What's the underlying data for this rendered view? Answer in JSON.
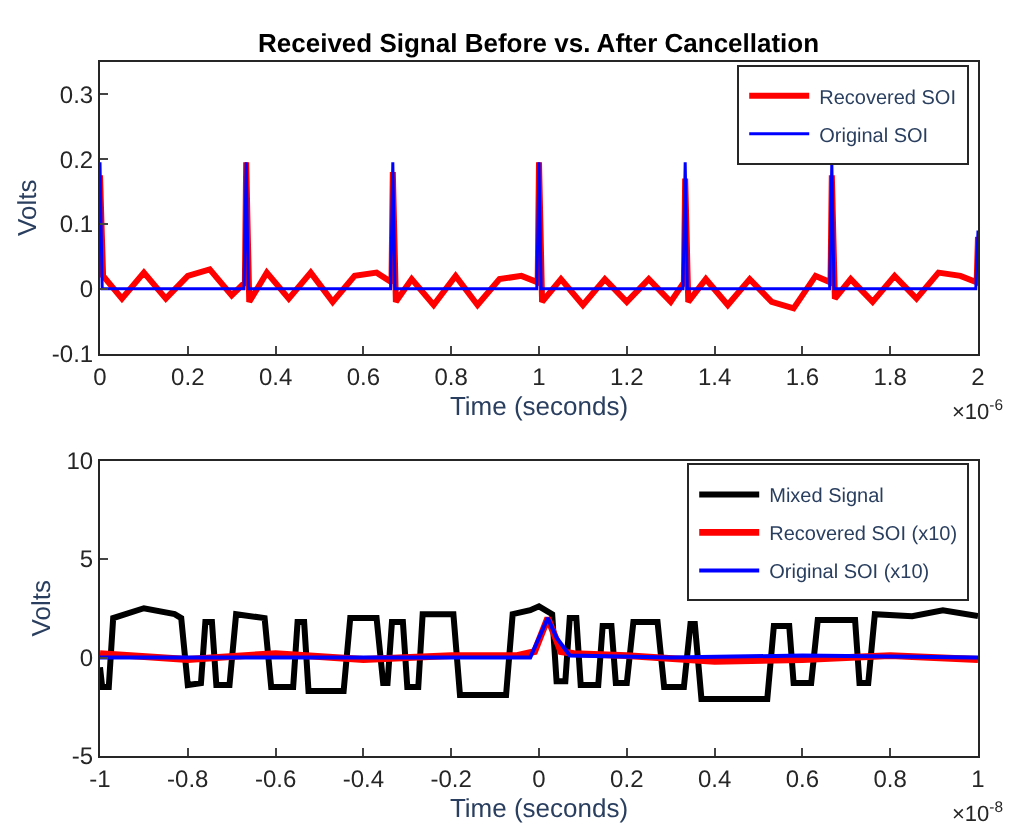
{
  "chart_data": [
    {
      "type": "line",
      "title": "Received Signal Before vs. After Cancellation",
      "xlabel": "Time (seconds)",
      "ylabel": "Volts",
      "xlim": [
        0,
        2
      ],
      "xticks": [
        0,
        0.2,
        0.4,
        0.6,
        0.8,
        1,
        1.2,
        1.4,
        1.6,
        1.8,
        2
      ],
      "ylim": [
        -0.1,
        0.35
      ],
      "yticks": [
        -0.1,
        0,
        0.1,
        0.2,
        0.3
      ],
      "grid": false,
      "legend": "top right",
      "annotations": [
        "×10$^{-6}$"
      ],
      "series": [
        {
          "name": "Recovered SOI",
          "color": "#ff0000",
          "x": [
            0,
            0.007,
            0.05,
            0.1,
            0.15,
            0.2,
            0.25,
            0.3,
            0.33,
            0.333,
            0.34,
            0.38,
            0.43,
            0.48,
            0.53,
            0.58,
            0.63,
            0.664,
            0.667,
            0.674,
            0.71,
            0.76,
            0.81,
            0.86,
            0.91,
            0.96,
            0.997,
            1.0,
            1.007,
            1.05,
            1.1,
            1.15,
            1.2,
            1.25,
            1.3,
            1.33,
            1.333,
            1.34,
            1.38,
            1.43,
            1.48,
            1.53,
            1.58,
            1.63,
            1.664,
            1.667,
            1.674,
            1.71,
            1.76,
            1.81,
            1.86,
            1.91,
            1.96,
            1.997,
            2.0
          ],
          "values": [
            0.175,
            0.02,
            -0.015,
            0.025,
            -0.015,
            0.02,
            0.03,
            -0.01,
            0.01,
            0.195,
            -0.02,
            0.025,
            -0.015,
            0.025,
            -0.02,
            0.02,
            0.025,
            0.01,
            0.18,
            -0.02,
            0.015,
            -0.025,
            0.02,
            -0.025,
            0.015,
            0.02,
            0.01,
            0.195,
            -0.02,
            0.015,
            -0.025,
            0.015,
            -0.02,
            0.015,
            -0.02,
            0.01,
            0.17,
            -0.02,
            0.015,
            -0.025,
            0.015,
            -0.02,
            -0.03,
            0.02,
            0.01,
            0.175,
            -0.015,
            0.015,
            -0.02,
            0.02,
            -0.015,
            0.025,
            0.02,
            0.01,
            0.08
          ]
        },
        {
          "name": "Original SOI",
          "color": "#0000ff",
          "x": [
            0,
            0.005,
            0.328,
            0.333,
            0.338,
            0.662,
            0.667,
            0.672,
            0.995,
            1.0,
            1.005,
            1.328,
            1.333,
            1.338,
            1.662,
            1.667,
            1.672,
            1.995,
            2.0
          ],
          "values": [
            0.195,
            0,
            0,
            0.195,
            0,
            0,
            0.195,
            0,
            0,
            0.195,
            0,
            0,
            0.195,
            0,
            0,
            0.195,
            0,
            0,
            0.09
          ]
        }
      ]
    },
    {
      "type": "line",
      "xlabel": "Time (seconds)",
      "ylabel": "Volts",
      "xlim": [
        -1,
        1
      ],
      "xticks": [
        -1,
        -0.8,
        -0.6,
        -0.4,
        -0.2,
        0,
        0.2,
        0.4,
        0.6,
        0.8,
        1
      ],
      "ylim": [
        -5,
        10
      ],
      "yticks": [
        -5,
        0,
        5,
        10
      ],
      "grid": false,
      "legend": "top right",
      "annotations": [
        "×10$^{-8}$"
      ],
      "series": [
        {
          "name": "Mixed Signal",
          "color": "#000000",
          "x": [
            -1,
            -0.995,
            -0.98,
            -0.97,
            -0.9,
            -0.83,
            -0.815,
            -0.8,
            -0.77,
            -0.76,
            -0.745,
            -0.735,
            -0.705,
            -0.69,
            -0.625,
            -0.61,
            -0.56,
            -0.55,
            -0.535,
            -0.525,
            -0.445,
            -0.43,
            -0.37,
            -0.355,
            -0.345,
            -0.335,
            -0.31,
            -0.3,
            -0.275,
            -0.265,
            -0.195,
            -0.18,
            -0.075,
            -0.06,
            -0.02,
            0,
            0.03,
            0.04,
            0.06,
            0.07,
            0.085,
            0.095,
            0.135,
            0.145,
            0.165,
            0.175,
            0.2,
            0.215,
            0.27,
            0.285,
            0.33,
            0.345,
            0.355,
            0.37,
            0.52,
            0.535,
            0.57,
            0.58,
            0.62,
            0.635,
            0.72,
            0.73,
            0.75,
            0.765,
            0.85,
            0.92,
            1.0
          ],
          "values": [
            -0.5,
            -1.5,
            -1.5,
            2.0,
            2.5,
            2.2,
            2.0,
            -1.4,
            -1.3,
            1.8,
            1.8,
            -1.4,
            -1.4,
            2.2,
            2.0,
            -1.5,
            -1.5,
            1.8,
            1.8,
            -1.7,
            -1.7,
            2.0,
            2.0,
            -1.3,
            -1.3,
            1.8,
            1.8,
            -1.5,
            -1.5,
            2.2,
            2.2,
            -1.9,
            -1.9,
            2.2,
            2.4,
            2.6,
            2.2,
            -1.2,
            -1.2,
            2.0,
            2.0,
            -1.4,
            -1.4,
            1.6,
            1.6,
            -1.3,
            -1.3,
            1.8,
            1.8,
            -1.5,
            -1.5,
            1.7,
            1.7,
            -2.1,
            -2.1,
            1.6,
            1.6,
            -1.3,
            -1.3,
            1.9,
            1.9,
            -1.3,
            -1.3,
            2.2,
            2.1,
            2.4,
            2.1
          ]
        },
        {
          "name": "Recovered SOI (x10)",
          "color": "#ff0000",
          "x": [
            -1,
            -0.8,
            -0.6,
            -0.4,
            -0.2,
            -0.05,
            -0.01,
            0.02,
            0.05,
            0.08,
            0.2,
            0.4,
            0.6,
            0.8,
            1.0
          ],
          "values": [
            0.2,
            -0.1,
            0.2,
            -0.1,
            0.1,
            0.1,
            0.3,
            2.0,
            0.3,
            0.2,
            0.1,
            -0.2,
            -0.1,
            0.1,
            -0.1
          ]
        },
        {
          "name": "Original SOI (x10)",
          "color": "#0000ff",
          "x": [
            -1,
            -0.5,
            -0.02,
            0.0,
            0.02,
            0.04,
            0.07,
            0.3,
            0.6,
            1.0
          ],
          "values": [
            0,
            0,
            0,
            1.0,
            2.0,
            1.0,
            0.1,
            0,
            0.1,
            0
          ]
        }
      ]
    }
  ]
}
